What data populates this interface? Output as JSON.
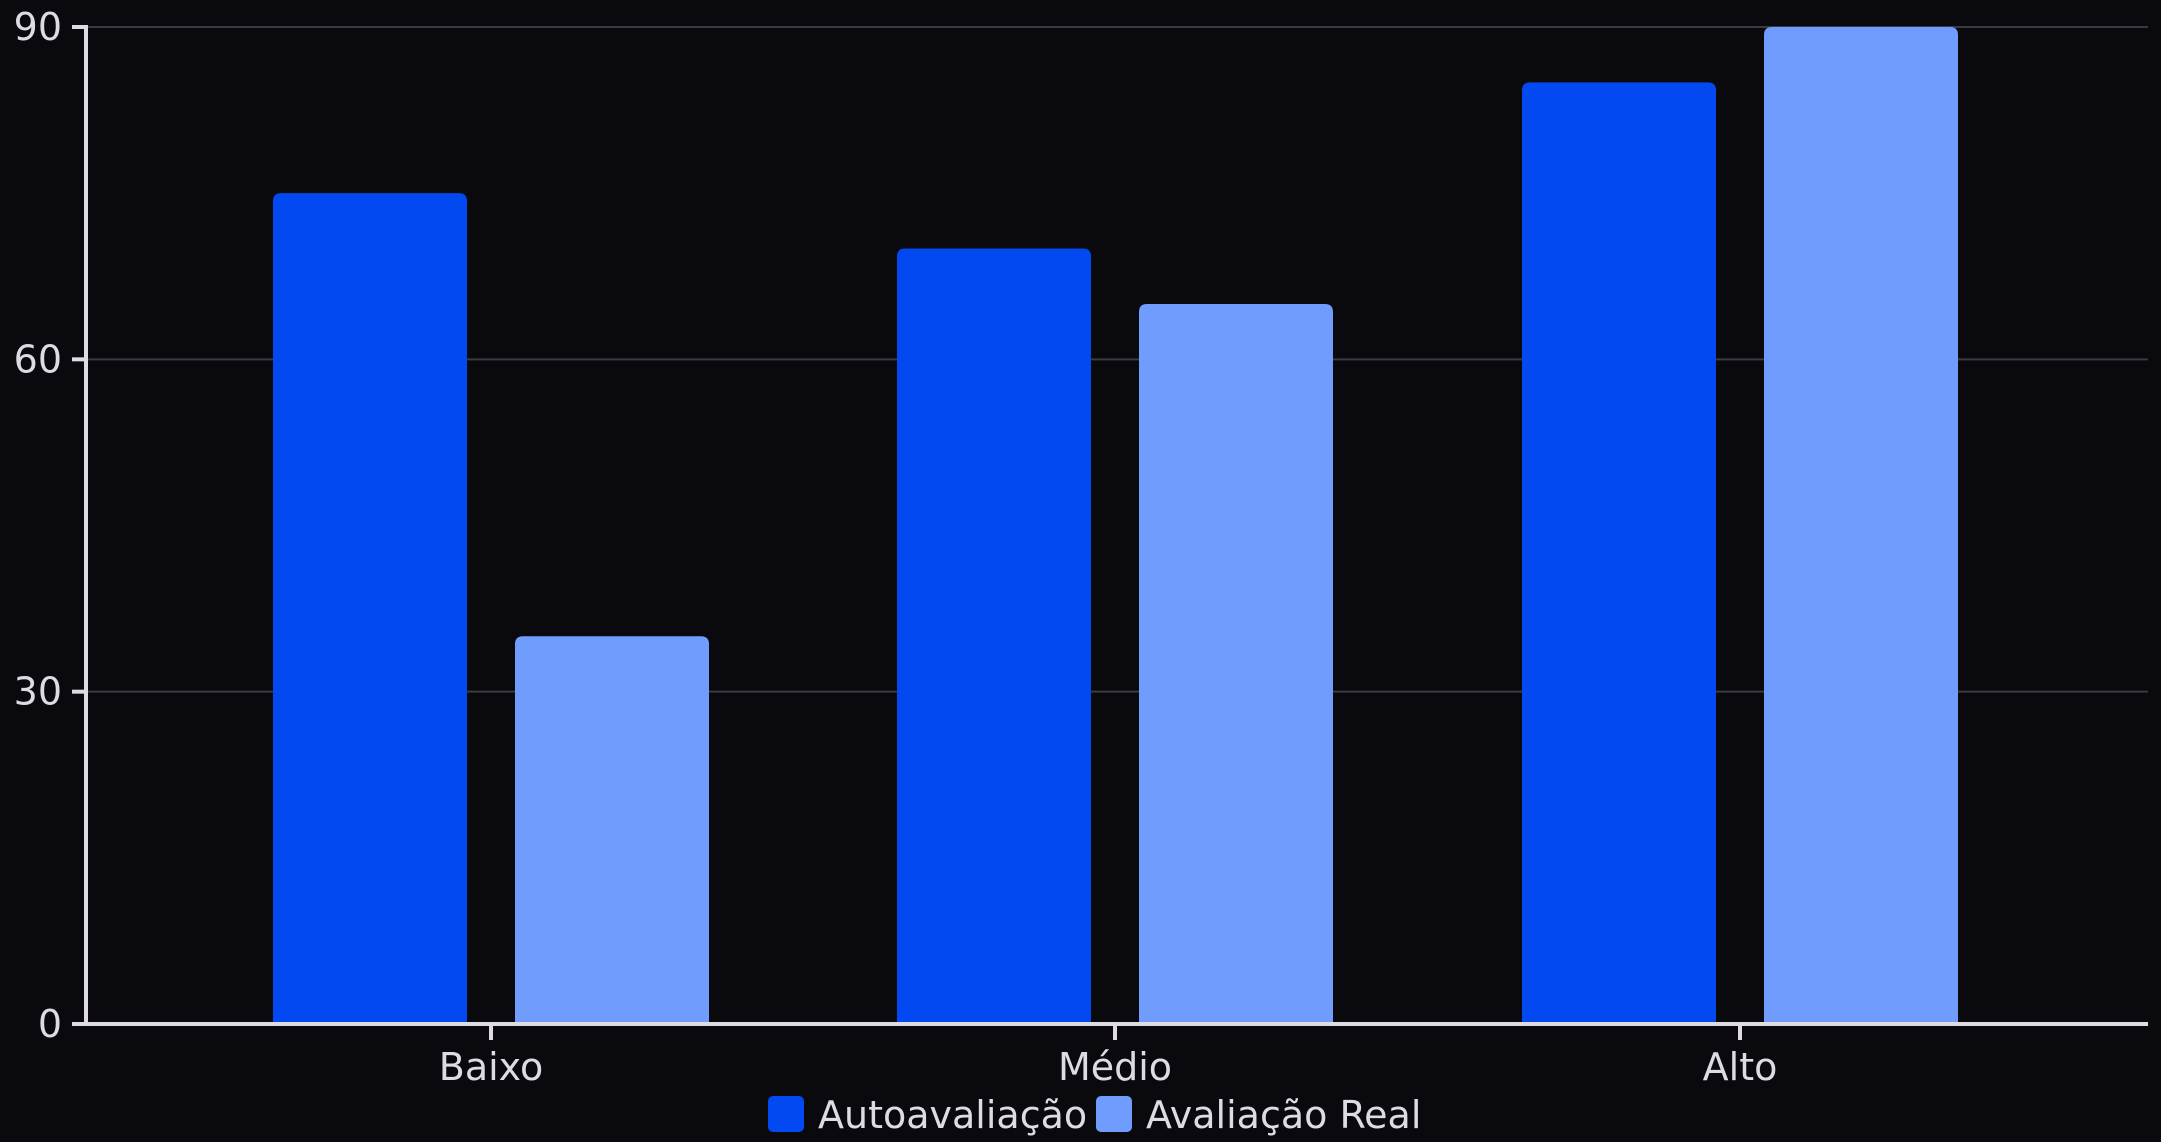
{
  "chart_data": {
    "type": "bar",
    "title": "",
    "xlabel": "",
    "ylabel": "",
    "categories": [
      "Baixo",
      "Médio",
      "Alto"
    ],
    "series": [
      {
        "name": "Autoavaliação",
        "values": [
          75,
          70,
          85
        ],
        "color": "#0249f2"
      },
      {
        "name": "Avaliação Real",
        "values": [
          35,
          65,
          90
        ],
        "color": "#6f9cfd"
      }
    ],
    "ylim": [
      0,
      90
    ],
    "yticks": [
      0,
      30,
      60,
      90
    ],
    "grid": true,
    "legend_position": "bottom-center",
    "colors": {
      "background": "#09090e",
      "axis": "#e0dbe3",
      "grid": "#3a3a40",
      "text": "#dcdce3"
    }
  }
}
